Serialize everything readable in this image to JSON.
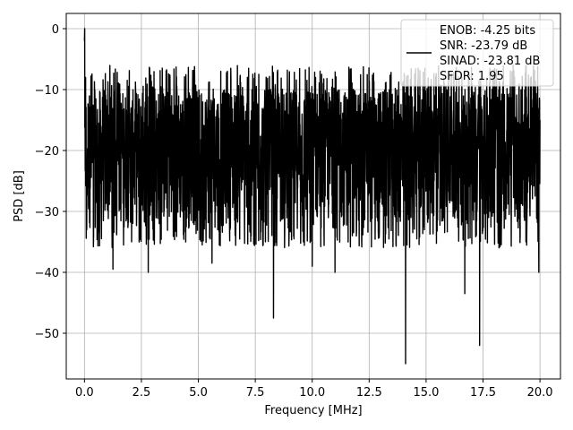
{
  "chart_data": {
    "type": "line",
    "title": "",
    "xlabel": "Frequency [MHz]",
    "ylabel": "PSD [dB]",
    "xlim": [
      -0.8,
      20.9
    ],
    "ylim": [
      -57.5,
      2.5
    ],
    "x_ticks": [
      0.0,
      2.5,
      5.0,
      7.5,
      10.0,
      12.5,
      15.0,
      17.5,
      20.0
    ],
    "x_tick_labels": [
      "0.0",
      "2.5",
      "5.0",
      "7.5",
      "10.0",
      "12.5",
      "15.0",
      "17.5",
      "20.0"
    ],
    "y_ticks": [
      0,
      -10,
      -20,
      -30,
      -40,
      -50
    ],
    "y_tick_labels": [
      "0",
      "−10",
      "−20",
      "−30",
      "−40",
      "−50"
    ],
    "grid": true,
    "legend_position": "top-right",
    "legend_entries": [
      "ENOB: -4.25 bits",
      "SNR: -23.79 dB",
      "SINAD: -23.81 dB",
      "SFDR: 1.95"
    ],
    "series": [
      {
        "color": "#000000",
        "x_range": [
          0.0,
          20.0
        ],
        "noise_band_db": [
          -33.0,
          -10.0
        ],
        "points": [
          {
            "x": 0.0,
            "y": -2.0
          },
          {
            "x": 0.01,
            "y": 0.0
          },
          {
            "x": 0.05,
            "y": -8.0
          },
          {
            "x": 0.1,
            "y": -33.0
          },
          {
            "x": 1.25,
            "y": -39.5
          },
          {
            "x": 2.8,
            "y": -40.0
          },
          {
            "x": 5.6,
            "y": -38.5
          },
          {
            "x": 8.3,
            "y": -47.5
          },
          {
            "x": 10.0,
            "y": -39.0
          },
          {
            "x": 11.0,
            "y": -40.0
          },
          {
            "x": 14.1,
            "y": -55.0
          },
          {
            "x": 16.7,
            "y": -43.5
          },
          {
            "x": 17.35,
            "y": -52.0
          },
          {
            "x": 19.95,
            "y": -40.0
          },
          {
            "x": 20.0,
            "y": -15.0
          }
        ]
      }
    ]
  }
}
